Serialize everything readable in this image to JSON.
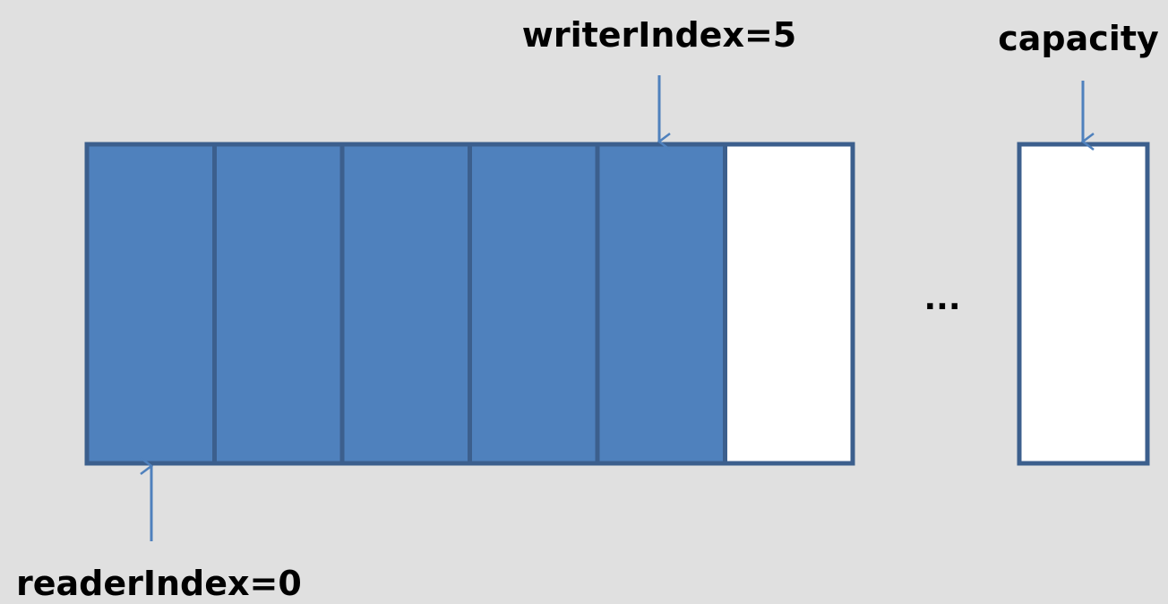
{
  "labels": {
    "writer_index": "writerIndex=5",
    "reader_index": "readerIndex=0",
    "capacity": "capacity",
    "ellipsis": "..."
  },
  "buffer": {
    "cell_count": 6,
    "readable_cells": 5,
    "writer_index": 5,
    "reader_index": 0
  },
  "colors": {
    "background": "#e0e0e0",
    "filled_cell": "#4f81bd",
    "empty_cell": "#ffffff",
    "cell_border": "#3c5f8d",
    "arrow": "#4f81bd"
  }
}
